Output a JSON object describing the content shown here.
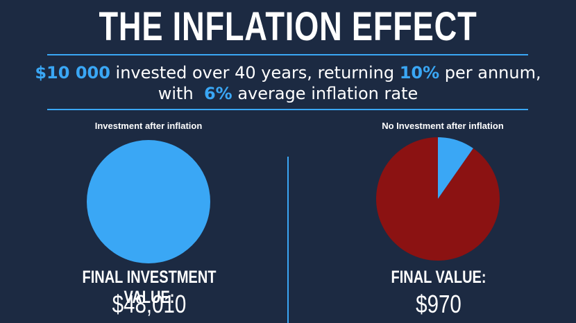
{
  "title": "THE INFLATION EFFECT",
  "subtitle": {
    "line1_amount": "$10 000",
    "line1_mid": " invested over 40 years, returning ",
    "line1_rate": "10%",
    "line1_end": " per annum,",
    "line2_start": "with  ",
    "line2_rate": "6%",
    "line2_end": " average inflation rate"
  },
  "colors": {
    "background": "#1c2a42",
    "accent": "#3aa7f5",
    "loss": "#8b1212"
  },
  "chart_data": [
    {
      "type": "pie",
      "title": "Investment after inflation",
      "slices": [
        {
          "label": "",
          "value": 100,
          "color": "#3aa7f5"
        }
      ],
      "value_label": "FINAL INVESTMENT VALUE:",
      "value": "$48,010"
    },
    {
      "type": "pie",
      "title": "No Investment after inflation",
      "slices": [
        {
          "label": "",
          "value": 9.7,
          "color": "#3aa7f5"
        },
        {
          "label": "",
          "value": 90.3,
          "color": "#8b1212"
        }
      ],
      "value_label": "FINAL VALUE:",
      "value": "$970"
    }
  ]
}
